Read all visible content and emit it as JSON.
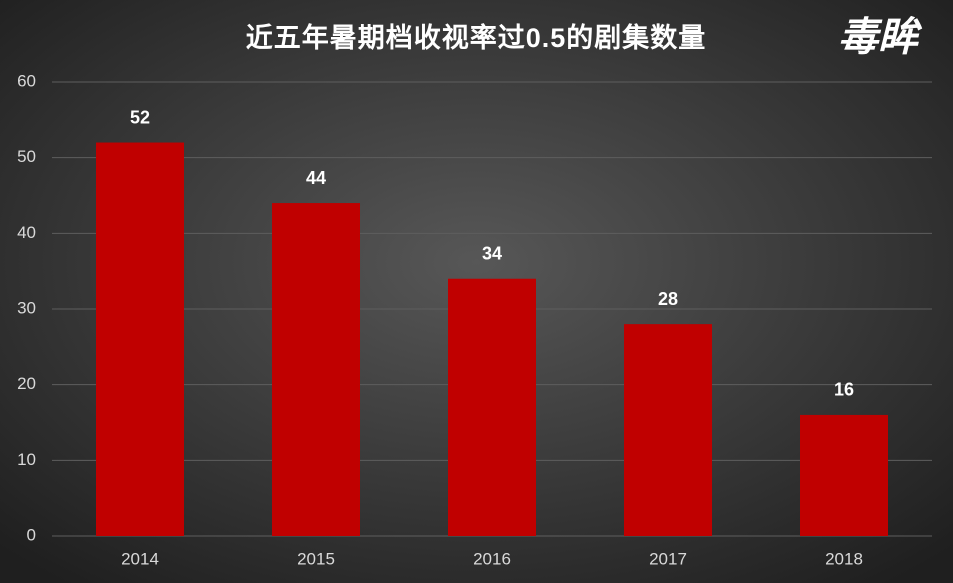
{
  "chart_data": {
    "type": "bar",
    "title": "近五年暑期档收视率过0.5的剧集数量",
    "watermark": "毒眸",
    "categories": [
      "2014",
      "2015",
      "2016",
      "2017",
      "2018"
    ],
    "values": [
      52,
      44,
      34,
      28,
      16
    ],
    "color": "#c00000",
    "ylim": [
      0,
      60
    ],
    "yticks": [
      0,
      10,
      20,
      30,
      40,
      50,
      60
    ],
    "grid": true,
    "data_labels": true
  }
}
